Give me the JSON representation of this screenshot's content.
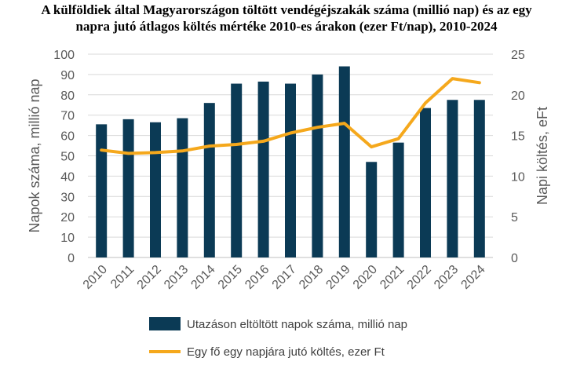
{
  "title": {
    "line1": "A külföldiek által Magyarországon töltött vendégéjszakák száma (millió nap) és az egy",
    "line2": "napra jutó átlagos költés mértéke 2010-es árakon (ezer Ft/nap), 2010-2024"
  },
  "chart_data": {
    "type": "bar+line",
    "title": "A külföldiek által Magyarországon töltött vendégéjszakák száma (millió nap) és az egy napra jutó átlagos költés mértéke 2010-es árakon (ezer Ft/nap), 2010-2024",
    "categories": [
      "2010",
      "2011",
      "2012",
      "2013",
      "2014",
      "2015",
      "2016",
      "2017",
      "2018",
      "2019",
      "2020",
      "2021",
      "2022",
      "2023",
      "2024"
    ],
    "series": [
      {
        "name": "Utazáson eltöltött napok száma, millió nap",
        "type": "bar",
        "axis": "left",
        "color": "#0b3a55",
        "values": [
          65.5,
          68,
          66.5,
          68.5,
          76,
          85.5,
          86.5,
          85.5,
          90,
          94,
          47,
          56.5,
          73.5,
          77.5,
          77.5
        ]
      },
      {
        "name": "Egy fő egy napjára jutó költés, ezer Ft",
        "type": "line",
        "axis": "right",
        "color": "#f5a81c",
        "values": [
          13.2,
          12.8,
          12.9,
          13.1,
          13.7,
          13.9,
          14.3,
          15.3,
          16.0,
          16.5,
          13.6,
          14.6,
          19.0,
          22.0,
          21.5
        ]
      }
    ],
    "ylabel": "Napok száma, millió nap",
    "y2label": "Napi költés, eFt",
    "ylim": [
      0,
      100
    ],
    "yticks": [
      "0",
      "10",
      "20",
      "30",
      "40",
      "50",
      "60",
      "70",
      "80",
      "90",
      "100"
    ],
    "y2lim": [
      0,
      25
    ],
    "y2ticks": [
      "0",
      "5",
      "10",
      "15",
      "20",
      "25"
    ],
    "grid": true,
    "legend_position": "bottom"
  }
}
